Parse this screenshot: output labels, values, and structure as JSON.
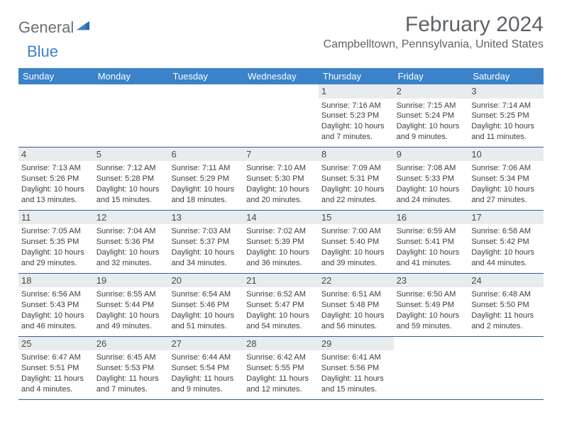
{
  "logo": {
    "general": "General",
    "blue": "Blue"
  },
  "title": "February 2024",
  "location": "Campbelltown, Pennsylvania, United States",
  "colors": {
    "header_bg": "#3b82c9",
    "header_text": "#ffffff",
    "daynum_bg": "#e9ecee",
    "rule": "#355e8a",
    "body_text": "#3d3d3d",
    "title_text": "#5f6367"
  },
  "day_headers": [
    "Sunday",
    "Monday",
    "Tuesday",
    "Wednesday",
    "Thursday",
    "Friday",
    "Saturday"
  ],
  "weeks": [
    [
      null,
      null,
      null,
      null,
      {
        "n": "1",
        "sr": "7:16 AM",
        "ss": "5:23 PM",
        "dl": "10 hours and 7 minutes."
      },
      {
        "n": "2",
        "sr": "7:15 AM",
        "ss": "5:24 PM",
        "dl": "10 hours and 9 minutes."
      },
      {
        "n": "3",
        "sr": "7:14 AM",
        "ss": "5:25 PM",
        "dl": "10 hours and 11 minutes."
      }
    ],
    [
      {
        "n": "4",
        "sr": "7:13 AM",
        "ss": "5:26 PM",
        "dl": "10 hours and 13 minutes."
      },
      {
        "n": "5",
        "sr": "7:12 AM",
        "ss": "5:28 PM",
        "dl": "10 hours and 15 minutes."
      },
      {
        "n": "6",
        "sr": "7:11 AM",
        "ss": "5:29 PM",
        "dl": "10 hours and 18 minutes."
      },
      {
        "n": "7",
        "sr": "7:10 AM",
        "ss": "5:30 PM",
        "dl": "10 hours and 20 minutes."
      },
      {
        "n": "8",
        "sr": "7:09 AM",
        "ss": "5:31 PM",
        "dl": "10 hours and 22 minutes."
      },
      {
        "n": "9",
        "sr": "7:08 AM",
        "ss": "5:33 PM",
        "dl": "10 hours and 24 minutes."
      },
      {
        "n": "10",
        "sr": "7:06 AM",
        "ss": "5:34 PM",
        "dl": "10 hours and 27 minutes."
      }
    ],
    [
      {
        "n": "11",
        "sr": "7:05 AM",
        "ss": "5:35 PM",
        "dl": "10 hours and 29 minutes."
      },
      {
        "n": "12",
        "sr": "7:04 AM",
        "ss": "5:36 PM",
        "dl": "10 hours and 32 minutes."
      },
      {
        "n": "13",
        "sr": "7:03 AM",
        "ss": "5:37 PM",
        "dl": "10 hours and 34 minutes."
      },
      {
        "n": "14",
        "sr": "7:02 AM",
        "ss": "5:39 PM",
        "dl": "10 hours and 36 minutes."
      },
      {
        "n": "15",
        "sr": "7:00 AM",
        "ss": "5:40 PM",
        "dl": "10 hours and 39 minutes."
      },
      {
        "n": "16",
        "sr": "6:59 AM",
        "ss": "5:41 PM",
        "dl": "10 hours and 41 minutes."
      },
      {
        "n": "17",
        "sr": "6:58 AM",
        "ss": "5:42 PM",
        "dl": "10 hours and 44 minutes."
      }
    ],
    [
      {
        "n": "18",
        "sr": "6:56 AM",
        "ss": "5:43 PM",
        "dl": "10 hours and 46 minutes."
      },
      {
        "n": "19",
        "sr": "6:55 AM",
        "ss": "5:44 PM",
        "dl": "10 hours and 49 minutes."
      },
      {
        "n": "20",
        "sr": "6:54 AM",
        "ss": "5:46 PM",
        "dl": "10 hours and 51 minutes."
      },
      {
        "n": "21",
        "sr": "6:52 AM",
        "ss": "5:47 PM",
        "dl": "10 hours and 54 minutes."
      },
      {
        "n": "22",
        "sr": "6:51 AM",
        "ss": "5:48 PM",
        "dl": "10 hours and 56 minutes."
      },
      {
        "n": "23",
        "sr": "6:50 AM",
        "ss": "5:49 PM",
        "dl": "10 hours and 59 minutes."
      },
      {
        "n": "24",
        "sr": "6:48 AM",
        "ss": "5:50 PM",
        "dl": "11 hours and 2 minutes."
      }
    ],
    [
      {
        "n": "25",
        "sr": "6:47 AM",
        "ss": "5:51 PM",
        "dl": "11 hours and 4 minutes."
      },
      {
        "n": "26",
        "sr": "6:45 AM",
        "ss": "5:53 PM",
        "dl": "11 hours and 7 minutes."
      },
      {
        "n": "27",
        "sr": "6:44 AM",
        "ss": "5:54 PM",
        "dl": "11 hours and 9 minutes."
      },
      {
        "n": "28",
        "sr": "6:42 AM",
        "ss": "5:55 PM",
        "dl": "11 hours and 12 minutes."
      },
      {
        "n": "29",
        "sr": "6:41 AM",
        "ss": "5:56 PM",
        "dl": "11 hours and 15 minutes."
      },
      null,
      null
    ]
  ],
  "labels": {
    "sunrise": "Sunrise: ",
    "sunset": "Sunset: ",
    "daylight": "Daylight: "
  }
}
